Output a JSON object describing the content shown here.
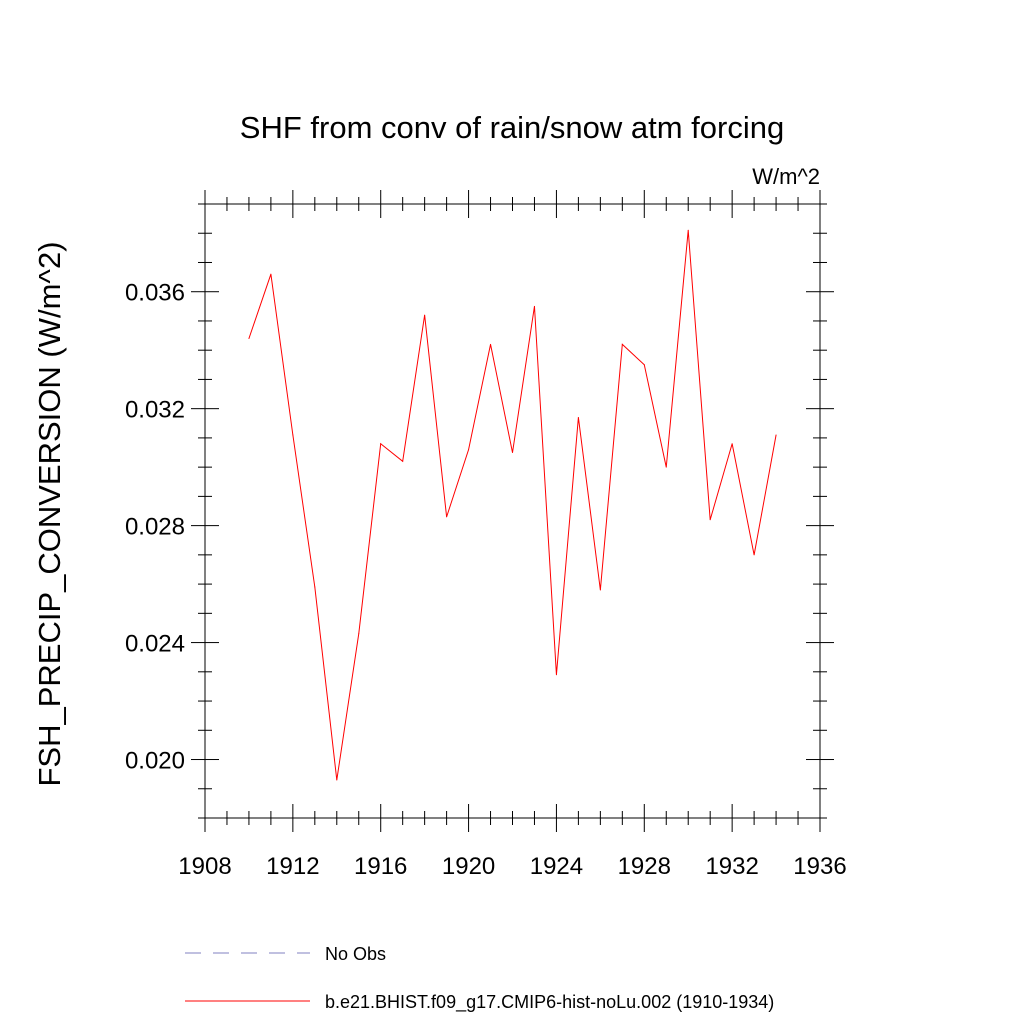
{
  "chart_data": {
    "type": "line",
    "title": "SHF from conv of rain/snow atm forcing",
    "units_label": "W/m^2",
    "xlabel": "",
    "ylabel": "FSH_PRECIP_CONVERSION  (W/m^2)",
    "xlim": [
      1908,
      1936
    ],
    "ylim": [
      0.018,
      0.039
    ],
    "x_ticks": [
      1908,
      1912,
      1916,
      1920,
      1924,
      1928,
      1932,
      1936
    ],
    "x_tick_labels": [
      "1908",
      "1912",
      "1916",
      "1920",
      "1924",
      "1928",
      "1932",
      "1936"
    ],
    "y_ticks": [
      0.02,
      0.024,
      0.028,
      0.032,
      0.036
    ],
    "y_tick_labels": [
      "0.020",
      "0.024",
      "0.028",
      "0.032",
      "0.036"
    ],
    "grid": false,
    "series": [
      {
        "name": "b.e21.BHIST.f09_g17.CMIP6-hist-noLu.002 (1910-1934)",
        "color": "#ff0000",
        "x": [
          1910,
          1911,
          1912,
          1913,
          1914,
          1915,
          1916,
          1917,
          1918,
          1919,
          1920,
          1921,
          1922,
          1923,
          1924,
          1925,
          1926,
          1927,
          1928,
          1929,
          1930,
          1931,
          1932,
          1933,
          1934
        ],
        "y": [
          0.0344,
          0.0366,
          0.0311,
          0.0259,
          0.0193,
          0.0243,
          0.0308,
          0.0302,
          0.0352,
          0.0283,
          0.0306,
          0.0342,
          0.0305,
          0.0355,
          0.0229,
          0.0317,
          0.0258,
          0.0342,
          0.0335,
          0.03,
          0.0381,
          0.0282,
          0.0308,
          0.027,
          0.0311
        ]
      }
    ],
    "legend": [
      {
        "label": "No Obs",
        "color": "#8080c0",
        "style": "dashed"
      },
      {
        "label": "b.e21.BHIST.f09_g17.CMIP6-hist-noLu.002 (1910-1934)",
        "color": "#ff0000",
        "style": "solid"
      }
    ]
  }
}
